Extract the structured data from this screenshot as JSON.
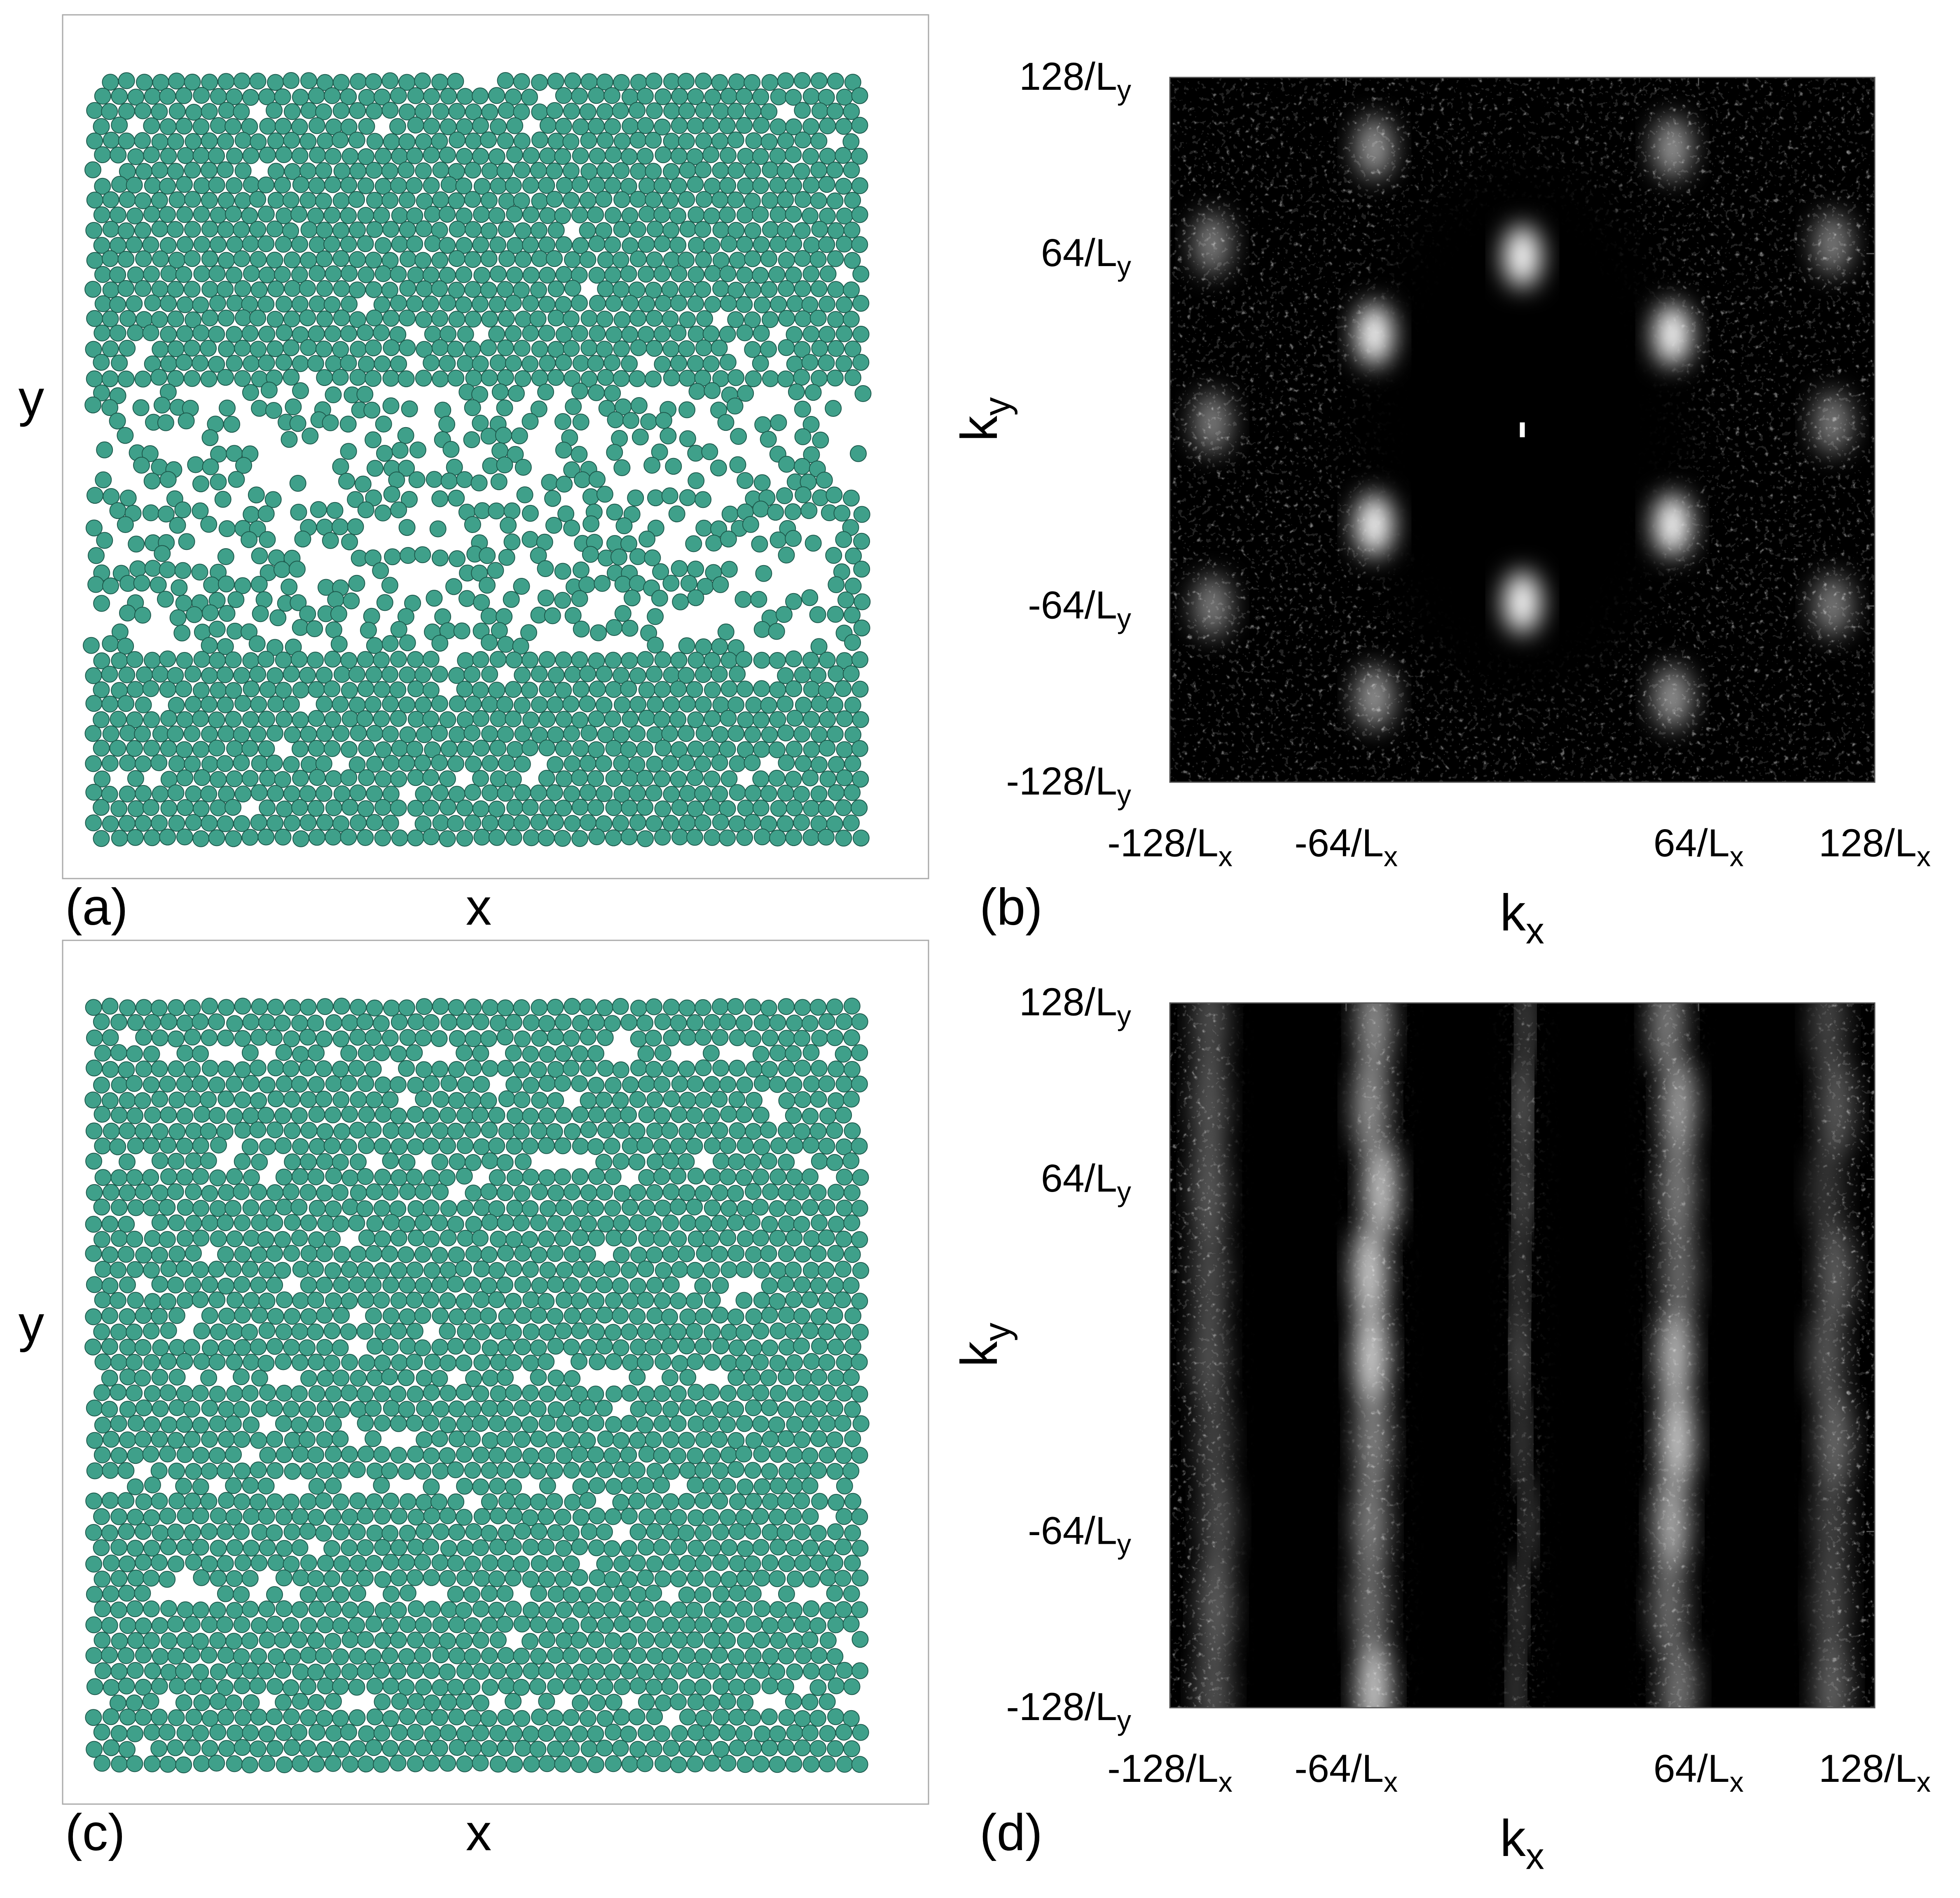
{
  "chart_data": [
    {
      "type": "scatter",
      "panel_label": "(a)",
      "xlabel": "x",
      "ylabel": "y",
      "color": "#3fa08a"
    },
    {
      "type": "heatmap",
      "panel_label": "(b)",
      "xlabel": {
        "text": "k",
        "sub": "x"
      },
      "ylabel": {
        "text": "k",
        "sub": "y"
      },
      "xlim": [
        -128,
        128
      ],
      "ylim": [
        -128,
        128
      ],
      "xticks": [
        {
          "value": -128,
          "label": "-128/L",
          "sub": "x"
        },
        {
          "value": -64,
          "label": "-64/L",
          "sub": "x"
        },
        {
          "value": 64,
          "label": "64/L",
          "sub": "x"
        },
        {
          "value": 128,
          "label": "128/L",
          "sub": "x"
        }
      ],
      "yticks": [
        {
          "value": -128,
          "label": "-128/L",
          "sub": "y"
        },
        {
          "value": -64,
          "label": "-64/L",
          "sub": "y"
        },
        {
          "value": 64,
          "label": "64/L",
          "sub": "y"
        },
        {
          "value": 128,
          "label": "128/L",
          "sub": "y"
        }
      ]
    },
    {
      "type": "scatter",
      "panel_label": "(c)",
      "xlabel": "x",
      "ylabel": "y",
      "color": "#3fa08a"
    },
    {
      "type": "heatmap",
      "panel_label": "(d)",
      "xlabel": {
        "text": "k",
        "sub": "x"
      },
      "ylabel": {
        "text": "k",
        "sub": "y"
      },
      "xlim": [
        -128,
        128
      ],
      "ylim": [
        -128,
        128
      ],
      "xticks": [
        {
          "value": -128,
          "label": "-128/L",
          "sub": "x"
        },
        {
          "value": -64,
          "label": "-64/L",
          "sub": "x"
        },
        {
          "value": 64,
          "label": "64/L",
          "sub": "x"
        },
        {
          "value": 128,
          "label": "128/L",
          "sub": "x"
        }
      ],
      "yticks": [
        {
          "value": -128,
          "label": "-128/L",
          "sub": "y"
        },
        {
          "value": -64,
          "label": "-64/L",
          "sub": "y"
        },
        {
          "value": 64,
          "label": "64/L",
          "sub": "y"
        },
        {
          "value": 128,
          "label": "128/L",
          "sub": "y"
        }
      ]
    }
  ]
}
